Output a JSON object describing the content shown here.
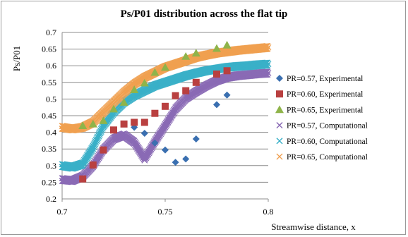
{
  "chart_data": {
    "type": "scatter",
    "title": "Ps/P01 distribution across the flat tip",
    "xlabel": "Streamwise distance, x",
    "ylabel": "Ps/P01",
    "xlim": [
      0.7,
      0.8
    ],
    "ylim": [
      0.2,
      0.7
    ],
    "x_ticks": [
      "0.7",
      "0.75",
      "0.8"
    ],
    "y_ticks": [
      "0.2",
      "0.25",
      "0.3",
      "0.35",
      "0.4",
      "0.45",
      "0.5",
      "0.55",
      "0.6",
      "0.65",
      "0.7"
    ],
    "grid": true,
    "legend_position": "right",
    "series": [
      {
        "name": "PR=0.57, Experimental",
        "marker": "diamond",
        "color": "#3a6fb0",
        "points": [
          [
            0.735,
            0.415
          ],
          [
            0.74,
            0.397
          ],
          [
            0.745,
            0.368
          ],
          [
            0.75,
            0.347
          ],
          [
            0.755,
            0.31
          ],
          [
            0.76,
            0.32
          ],
          [
            0.765,
            0.38
          ],
          [
            0.775,
            0.483
          ],
          [
            0.78,
            0.512
          ]
        ]
      },
      {
        "name": "PR=0.60, Experimental",
        "marker": "square",
        "color": "#b94040",
        "points": [
          [
            0.71,
            0.26
          ],
          [
            0.715,
            0.302
          ],
          [
            0.72,
            0.347
          ],
          [
            0.725,
            0.407
          ],
          [
            0.73,
            0.425
          ],
          [
            0.735,
            0.43
          ],
          [
            0.74,
            0.43
          ],
          [
            0.745,
            0.457
          ],
          [
            0.75,
            0.478
          ],
          [
            0.755,
            0.51
          ],
          [
            0.76,
            0.525
          ],
          [
            0.765,
            0.55
          ],
          [
            0.775,
            0.575
          ],
          [
            0.78,
            0.585
          ]
        ]
      },
      {
        "name": "PR=0.65, Experimental",
        "marker": "triangle",
        "color": "#8fb44a",
        "points": [
          [
            0.71,
            0.42
          ],
          [
            0.715,
            0.425
          ],
          [
            0.72,
            0.435
          ],
          [
            0.725,
            0.47
          ],
          [
            0.73,
            0.49
          ],
          [
            0.735,
            0.528
          ],
          [
            0.74,
            0.548
          ],
          [
            0.745,
            0.58
          ],
          [
            0.75,
            0.595
          ],
          [
            0.76,
            0.628
          ],
          [
            0.765,
            0.638
          ],
          [
            0.775,
            0.652
          ],
          [
            0.78,
            0.662
          ]
        ]
      },
      {
        "name": "PR=0.57, Computational",
        "marker": "x",
        "color": "#8a6ab5",
        "points": [
          [
            0.7,
            0.258
          ],
          [
            0.705,
            0.255
          ],
          [
            0.71,
            0.268
          ],
          [
            0.715,
            0.3
          ],
          [
            0.72,
            0.348
          ],
          [
            0.725,
            0.38
          ],
          [
            0.73,
            0.392
          ],
          [
            0.735,
            0.37
          ],
          [
            0.74,
            0.32
          ],
          [
            0.745,
            0.372
          ],
          [
            0.75,
            0.42
          ],
          [
            0.755,
            0.47
          ],
          [
            0.76,
            0.502
          ],
          [
            0.765,
            0.522
          ],
          [
            0.77,
            0.54
          ],
          [
            0.775,
            0.555
          ],
          [
            0.78,
            0.565
          ],
          [
            0.785,
            0.57
          ],
          [
            0.79,
            0.573
          ],
          [
            0.795,
            0.576
          ],
          [
            0.8,
            0.578
          ]
        ]
      },
      {
        "name": "PR=0.60, Computational",
        "marker": "x",
        "color": "#3ab0c8",
        "points": [
          [
            0.7,
            0.3
          ],
          [
            0.705,
            0.295
          ],
          [
            0.71,
            0.305
          ],
          [
            0.715,
            0.355
          ],
          [
            0.72,
            0.42
          ],
          [
            0.725,
            0.46
          ],
          [
            0.73,
            0.49
          ],
          [
            0.735,
            0.51
          ],
          [
            0.74,
            0.525
          ],
          [
            0.745,
            0.54
          ],
          [
            0.75,
            0.55
          ],
          [
            0.755,
            0.56
          ],
          [
            0.76,
            0.57
          ],
          [
            0.765,
            0.578
          ],
          [
            0.77,
            0.585
          ],
          [
            0.775,
            0.59
          ],
          [
            0.78,
            0.595
          ],
          [
            0.785,
            0.598
          ],
          [
            0.79,
            0.6
          ],
          [
            0.795,
            0.603
          ],
          [
            0.8,
            0.605
          ]
        ]
      },
      {
        "name": "PR=0.65, Computational",
        "marker": "x",
        "color": "#f0a050",
        "points": [
          [
            0.7,
            0.415
          ],
          [
            0.705,
            0.41
          ],
          [
            0.71,
            0.415
          ],
          [
            0.715,
            0.43
          ],
          [
            0.72,
            0.46
          ],
          [
            0.725,
            0.49
          ],
          [
            0.73,
            0.52
          ],
          [
            0.735,
            0.545
          ],
          [
            0.74,
            0.565
          ],
          [
            0.745,
            0.58
          ],
          [
            0.75,
            0.595
          ],
          [
            0.755,
            0.605
          ],
          [
            0.76,
            0.615
          ],
          [
            0.765,
            0.625
          ],
          [
            0.77,
            0.632
          ],
          [
            0.775,
            0.638
          ],
          [
            0.78,
            0.642
          ],
          [
            0.785,
            0.646
          ],
          [
            0.79,
            0.649
          ],
          [
            0.795,
            0.652
          ],
          [
            0.8,
            0.655
          ]
        ]
      }
    ]
  }
}
